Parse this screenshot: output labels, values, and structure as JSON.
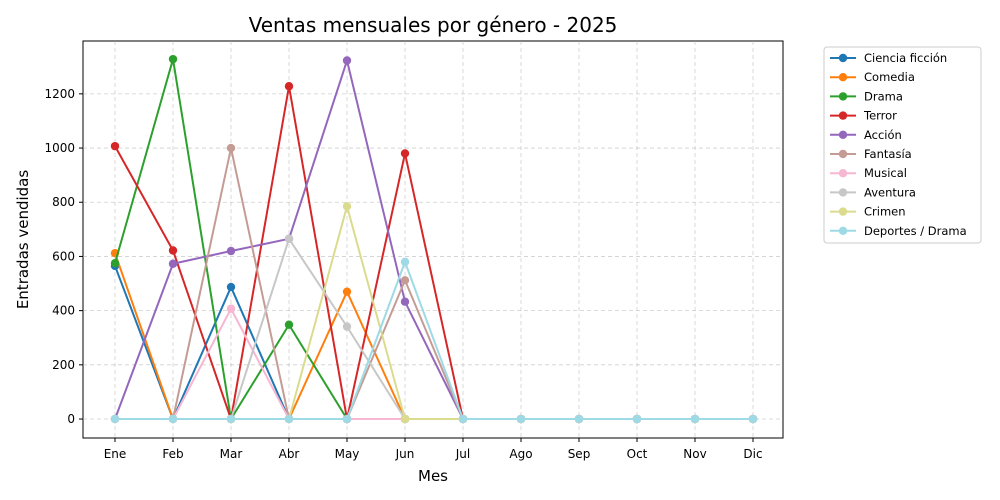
{
  "chart_data": {
    "type": "line",
    "title": "Ventas mensuales por género - 2025",
    "xlabel": "Mes",
    "ylabel": "Entradas vendidas",
    "categories": [
      "Ene",
      "Feb",
      "Mar",
      "Abr",
      "May",
      "Jun",
      "Jul",
      "Ago",
      "Sep",
      "Oct",
      "Nov",
      "Dic"
    ],
    "ylim": [
      -70,
      1395
    ],
    "yticks": [
      0,
      200,
      400,
      600,
      800,
      1000,
      1200
    ],
    "grid": true,
    "legend_position": "outside-right",
    "series": [
      {
        "name": "Ciencia ficción",
        "color": "#1f77b4",
        "values": [
          565,
          0,
          487,
          0,
          0,
          0,
          0,
          0,
          0,
          0,
          0,
          0
        ]
      },
      {
        "name": "Comedia",
        "color": "#ff7f0e",
        "values": [
          612,
          0,
          0,
          0,
          470,
          0,
          0,
          0,
          0,
          0,
          0,
          0
        ]
      },
      {
        "name": "Drama",
        "color": "#2ca02c",
        "values": [
          575,
          1328,
          0,
          348,
          0,
          0,
          0,
          0,
          0,
          0,
          0,
          0
        ]
      },
      {
        "name": "Terror",
        "color": "#d62728",
        "values": [
          1007,
          622,
          0,
          1228,
          0,
          980,
          0,
          0,
          0,
          0,
          0,
          0
        ]
      },
      {
        "name": "Acción",
        "color": "#9467bd",
        "values": [
          0,
          573,
          620,
          665,
          1323,
          433,
          0,
          0,
          0,
          0,
          0,
          0
        ]
      },
      {
        "name": "Fantasía",
        "color": "#c49c94",
        "values": [
          0,
          0,
          1000,
          0,
          0,
          512,
          0,
          0,
          0,
          0,
          0,
          0
        ]
      },
      {
        "name": "Musical",
        "color": "#f7b6d2",
        "values": [
          0,
          0,
          407,
          0,
          0,
          0,
          0,
          0,
          0,
          0,
          0,
          0
        ]
      },
      {
        "name": "Aventura",
        "color": "#c7c7c7",
        "values": [
          0,
          0,
          0,
          665,
          341,
          0,
          0,
          0,
          0,
          0,
          0,
          0
        ]
      },
      {
        "name": "Crimen",
        "color": "#dbdb8d",
        "values": [
          0,
          0,
          0,
          0,
          785,
          0,
          0,
          0,
          0,
          0,
          0,
          0
        ]
      },
      {
        "name": "Deportes / Drama",
        "color": "#9edae5",
        "values": [
          0,
          0,
          0,
          0,
          0,
          580,
          0,
          0,
          0,
          0,
          0,
          0
        ]
      }
    ]
  }
}
